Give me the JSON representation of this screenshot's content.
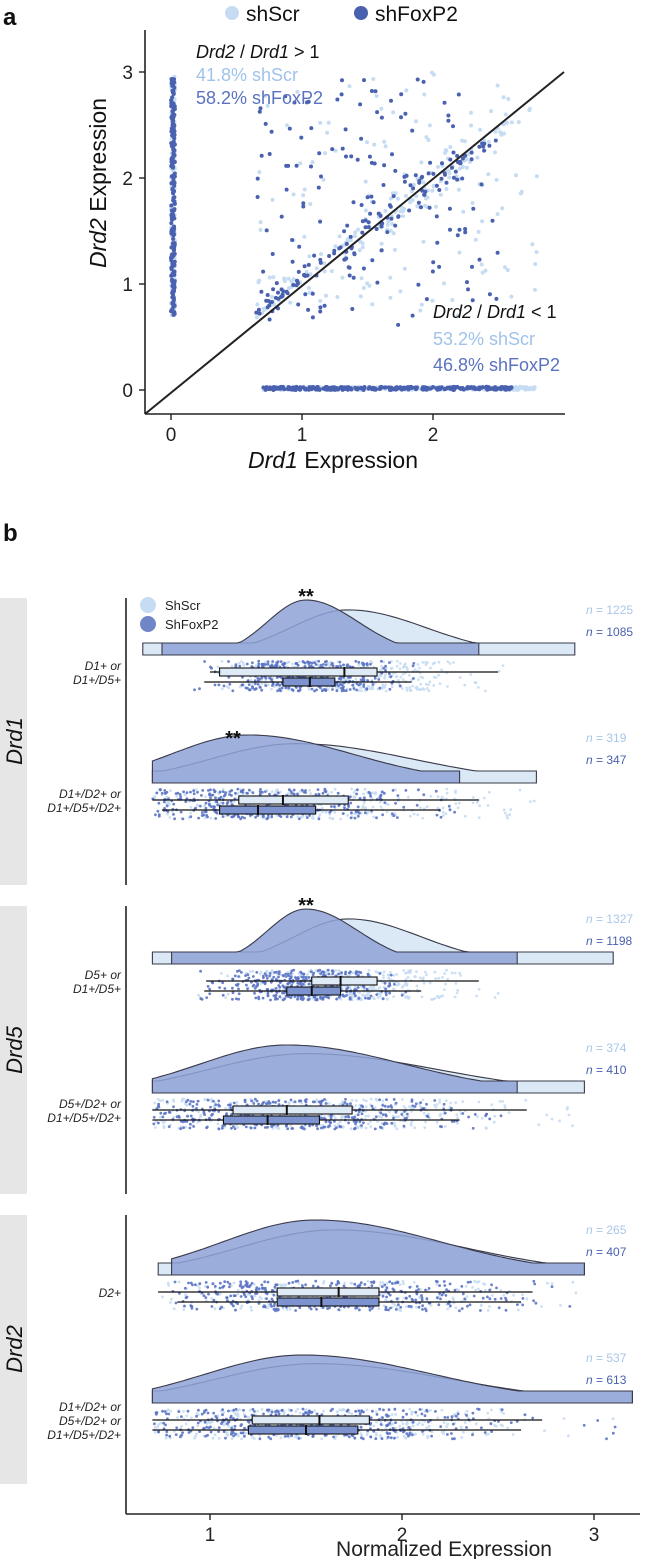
{
  "panel_a": {
    "label": "a",
    "legend": [
      {
        "name": "shScr",
        "color": "#c6dcf2"
      },
      {
        "name": "shFoxP2",
        "color": "#4a61b0"
      }
    ],
    "xlabel_gene": "Drd1",
    "xlabel_suffix": " Expression",
    "ylabel_gene": "Drd2",
    "ylabel_suffix": " Expression",
    "x_ticks": [
      "0",
      "1",
      "2"
    ],
    "y_ticks": [
      "0",
      "1",
      "2",
      "3"
    ],
    "upper_note": {
      "ratio_a": "Drd2",
      "sep": " / ",
      "ratio_b": "Drd1",
      "cmp": " > 1",
      "scr": "41.8% shScr",
      "fox": "58.2% shFoxP2"
    },
    "lower_note": {
      "ratio_a": "Drd2",
      "sep": " / ",
      "ratio_b": "Drd1",
      "cmp": " < 1",
      "scr": "53.2% shScr",
      "fox": "46.8% shFoxP2"
    }
  },
  "panel_b": {
    "label": "b",
    "legend": [
      {
        "name": "ShScr",
        "color": "#c6dcf2"
      },
      {
        "name": "ShFoxP2",
        "color": "#6f86c7"
      }
    ],
    "xlabel": "Normalized Expression",
    "x_ticks": [
      "1",
      "2",
      "3"
    ],
    "groups": [
      "Drd1",
      "Drd5",
      "Drd2"
    ],
    "significance": "**"
  },
  "chart_data": [
    {
      "type": "scatter",
      "panel": "a",
      "xlabel": "Drd1 Expression",
      "ylabel": "Drd2 Expression",
      "xlim": [
        -0.2,
        3.0
      ],
      "ylim": [
        -0.2,
        3.35
      ],
      "reference_line": {
        "slope": 1,
        "intercept": 0,
        "to": 3.0
      },
      "series": [
        {
          "name": "shScr",
          "color": "#c6dcf2",
          "clusters": [
            {
              "x": [
                0,
                0.03
              ],
              "y": [
                0.7,
                3.0
              ],
              "n": 140
            },
            {
              "x": [
                0.7,
                2.8
              ],
              "y": [
                0,
                0.03
              ],
              "n": 210
            },
            {
              "x": [
                0.65,
                2.6
              ],
              "y": [
                0.7,
                3.0
              ],
              "above_diagonal": true,
              "n": 120
            },
            {
              "x": [
                0.7,
                2.8
              ],
              "y": [
                0.7,
                2.2
              ],
              "below_diagonal": true,
              "n": 140
            }
          ]
        },
        {
          "name": "shFoxP2",
          "color": "#4a61b0",
          "clusters": [
            {
              "x": [
                0,
                0.03
              ],
              "y": [
                0.7,
                2.95
              ],
              "n": 210
            },
            {
              "x": [
                0.7,
                2.6
              ],
              "y": [
                0,
                0.03
              ],
              "n": 280
            },
            {
              "x": [
                0.65,
                2.2
              ],
              "y": [
                0.65,
                2.95
              ],
              "above_diagonal": true,
              "n": 150
            },
            {
              "x": [
                0.7,
                2.5
              ],
              "y": [
                0.6,
                2.0
              ],
              "below_diagonal": true,
              "n": 100
            }
          ]
        }
      ]
    },
    {
      "type": "raincloud",
      "panel": "b",
      "xlabel": "Normalized Expression",
      "xlim": [
        0.5,
        3.35
      ],
      "x_ticks": [
        1,
        2,
        3
      ],
      "series_names": [
        "ShScr",
        "ShFoxP2"
      ],
      "rows": [
        {
          "group": "Drd1",
          "label": [
            "D1+ or",
            "D1+/D5+"
          ],
          "sig": "**",
          "sig_x": 1.5,
          "scr": {
            "n": "1225",
            "min": 0.65,
            "max": 2.9,
            "peak": 1.72,
            "sd": 0.3,
            "q1": 1.05,
            "median": 1.7,
            "q3": 1.87,
            "lo": 1.0,
            "hi": 2.5
          },
          "fox": {
            "n": "1085",
            "min": 0.75,
            "max": 2.4,
            "peak": 1.5,
            "sd": 0.2,
            "q1": 1.38,
            "median": 1.52,
            "q3": 1.65,
            "lo": 0.97,
            "hi": 2.05
          }
        },
        {
          "group": "Drd1",
          "label": [
            "D1+/D2+ or",
            "D1+/D5+/D2+"
          ],
          "sig": "**",
          "sig_x": 1.12,
          "scr": {
            "n": "319",
            "min": 0.7,
            "max": 2.7,
            "peak": 1.45,
            "sd": 0.45,
            "q1": 1.15,
            "median": 1.38,
            "q3": 1.72,
            "lo": 0.7,
            "hi": 2.4
          },
          "fox": {
            "n": "347",
            "min": 0.7,
            "max": 2.3,
            "peak": 1.2,
            "sd": 0.4,
            "q1": 1.05,
            "median": 1.25,
            "q3": 1.55,
            "lo": 0.75,
            "hi": 2.2
          }
        },
        {
          "group": "Drd5",
          "label": [
            "D5+ or",
            "D1+/D5+"
          ],
          "sig": "**",
          "sig_x": 1.5,
          "scr": {
            "n": "1327",
            "min": 0.7,
            "max": 3.1,
            "peak": 1.72,
            "sd": 0.28,
            "q1": 1.53,
            "median": 1.68,
            "q3": 1.87,
            "lo": 0.98,
            "hi": 2.4
          },
          "fox": {
            "n": "1198",
            "min": 0.8,
            "max": 2.6,
            "peak": 1.5,
            "sd": 0.2,
            "q1": 1.4,
            "median": 1.53,
            "q3": 1.68,
            "lo": 0.97,
            "hi": 2.1
          }
        },
        {
          "group": "Drd5",
          "label": [
            "D5+/D2+ or",
            "D1+/D5+/D2+"
          ],
          "sig": "",
          "sig_x": 0,
          "scr": {
            "n": "374",
            "min": 0.7,
            "max": 2.95,
            "peak": 1.5,
            "sd": 0.5,
            "q1": 1.12,
            "median": 1.4,
            "q3": 1.74,
            "lo": 0.7,
            "hi": 2.65
          },
          "fox": {
            "n": "410",
            "min": 0.7,
            "max": 2.6,
            "peak": 1.4,
            "sd": 0.45,
            "q1": 1.07,
            "median": 1.3,
            "q3": 1.57,
            "lo": 0.7,
            "hi": 2.3
          }
        },
        {
          "group": "Drd2",
          "label": [
            "D2+"
          ],
          "sig": "",
          "sig_x": 0,
          "scr": {
            "n": "265",
            "min": 0.73,
            "max": 2.95,
            "peak": 1.65,
            "sd": 0.5,
            "q1": 1.35,
            "median": 1.67,
            "q3": 1.88,
            "lo": 0.73,
            "hi": 2.68
          },
          "fox": {
            "n": "407",
            "min": 0.8,
            "max": 2.95,
            "peak": 1.55,
            "sd": 0.48,
            "q1": 1.35,
            "median": 1.58,
            "q3": 1.88,
            "lo": 0.83,
            "hi": 2.62
          }
        },
        {
          "group": "Drd2",
          "label": [
            "D1+/D2+ or",
            "D5+/D2+ or",
            "D1+/D5+/D2+"
          ],
          "sig": "",
          "sig_x": 0,
          "scr": {
            "n": "537",
            "min": 0.7,
            "max": 3.2,
            "peak": 1.55,
            "sd": 0.52,
            "q1": 1.22,
            "median": 1.57,
            "q3": 1.83,
            "lo": 0.7,
            "hi": 2.73
          },
          "fox": {
            "n": "613",
            "min": 0.7,
            "max": 3.2,
            "peak": 1.48,
            "sd": 0.5,
            "q1": 1.2,
            "median": 1.5,
            "q3": 1.77,
            "lo": 0.7,
            "hi": 2.62
          }
        }
      ]
    }
  ]
}
